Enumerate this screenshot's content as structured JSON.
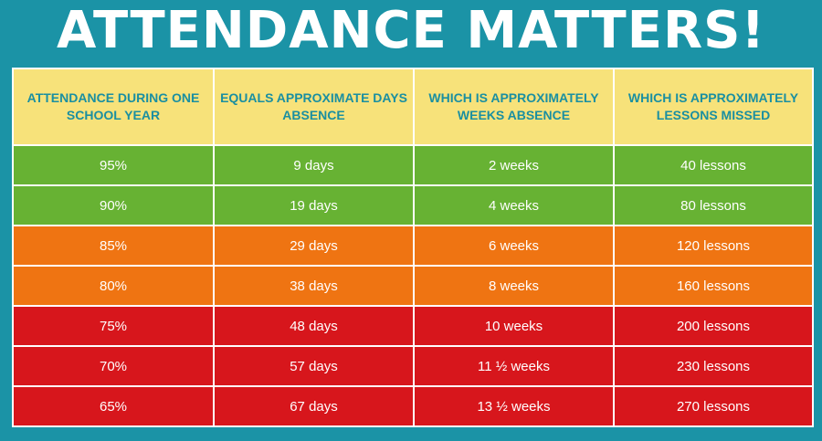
{
  "title": "ATTENDANCE MATTERS!",
  "colors": {
    "background": "#1b93a6",
    "header": "#f7e27a",
    "header_text": "#1a8fa1",
    "green": "#67b233",
    "orange": "#ef7412",
    "red": "#d7161c"
  },
  "table": {
    "headers": [
      "ATTENDANCE DURING ONE SCHOOL YEAR",
      "EQUALS APPROXIMATE DAYS ABSENCE",
      "WHICH IS APPROXIMATELY WEEKS ABSENCE",
      "WHICH IS APPROXIMATELY LESSONS MISSED"
    ],
    "rows": [
      {
        "band": "green",
        "cells": [
          "95%",
          "9 days",
          "2 weeks",
          "40 lessons"
        ]
      },
      {
        "band": "green",
        "cells": [
          "90%",
          "19 days",
          "4 weeks",
          "80 lessons"
        ]
      },
      {
        "band": "orange",
        "cells": [
          "85%",
          "29 days",
          "6 weeks",
          "120 lessons"
        ]
      },
      {
        "band": "orange",
        "cells": [
          "80%",
          "38 days",
          "8 weeks",
          "160 lessons"
        ]
      },
      {
        "band": "red",
        "cells": [
          "75%",
          "48 days",
          "10 weeks",
          "200 lessons"
        ]
      },
      {
        "band": "red",
        "cells": [
          "70%",
          "57 days",
          "11 ½ weeks",
          "230 lessons"
        ]
      },
      {
        "band": "red",
        "cells": [
          "65%",
          "67 days",
          "13 ½ weeks",
          "270 lessons"
        ]
      }
    ]
  }
}
